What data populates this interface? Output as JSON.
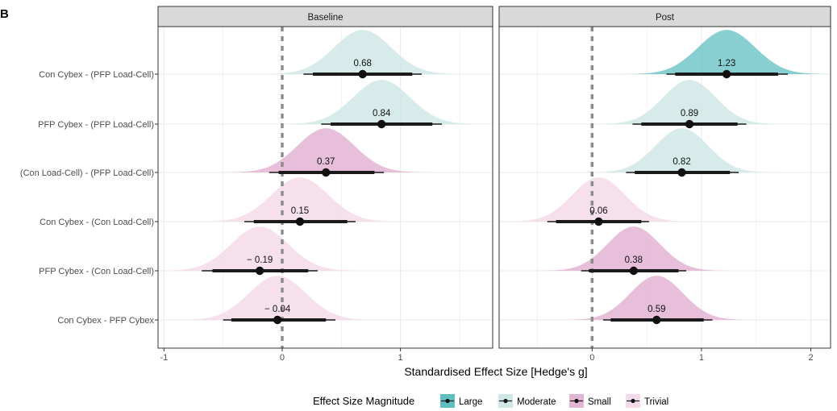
{
  "figure_label": "B",
  "x_axis_title": "Standardised Effect Size [Hedge's g]",
  "legend": {
    "title": "Effect Size Magnitude",
    "items": [
      {
        "label": "Large",
        "color": "#5fbfc0"
      },
      {
        "label": "Moderate",
        "color": "#cfe8e6"
      },
      {
        "label": "Small",
        "color": "#e3b4d4"
      },
      {
        "label": "Trivial",
        "color": "#f4dbe9"
      }
    ]
  },
  "magnitude_colors": {
    "Large": "#5fbfc0",
    "Moderate": "#cfe8e6",
    "Small": "#e3b4d4",
    "Trivial": "#f4dbe9"
  },
  "chart_data": {
    "type": "scatter",
    "subtype": "forest plot with density half-eyes",
    "y_categories": [
      "Con Cybex - (PFP Load-Cell)",
      "PFP Cybex - (PFP Load-Cell)",
      "(Con Load-Cell) - (PFP Load-Cell)",
      "Con Cybex - (Con Load-Cell)",
      "PFP Cybex - (Con Load-Cell)",
      "Con Cybex - PFP Cybex"
    ],
    "reference_line": 0,
    "grid": true,
    "legend_position": "bottom",
    "panels": [
      {
        "title": "Baseline",
        "xlim": [
          -1.05,
          1.78
        ],
        "xticks": [
          -1,
          0,
          1
        ],
        "xtick_labels": [
          "-1",
          "0",
          "1"
        ],
        "points": [
          {
            "category": "Con Cybex - (PFP Load-Cell)",
            "estimate": 0.68,
            "label": "0.68",
            "ci66": [
              0.26,
              1.1
            ],
            "ci95": [
              0.18,
              1.18
            ],
            "sd": 0.24,
            "magnitude": "Moderate"
          },
          {
            "category": "PFP Cybex - (PFP Load-Cell)",
            "estimate": 0.84,
            "label": "0.84",
            "ci66": [
              0.41,
              1.27
            ],
            "ci95": [
              0.33,
              1.35
            ],
            "sd": 0.24,
            "magnitude": "Moderate"
          },
          {
            "category": "(Con Load-Cell) - (PFP Load-Cell)",
            "estimate": 0.37,
            "label": "0.37",
            "ci66": [
              -0.03,
              0.78
            ],
            "ci95": [
              -0.11,
              0.86
            ],
            "sd": 0.24,
            "magnitude": "Small"
          },
          {
            "category": "Con Cybex - (Con Load-Cell)",
            "estimate": 0.15,
            "label": "0.15",
            "ci66": [
              -0.24,
              0.55
            ],
            "ci95": [
              -0.32,
              0.62
            ],
            "sd": 0.24,
            "magnitude": "Trivial"
          },
          {
            "category": "PFP Cybex - (Con Load-Cell)",
            "estimate": -0.19,
            "label": "− 0.19",
            "ci66": [
              -0.59,
              0.22
            ],
            "ci95": [
              -0.68,
              0.3
            ],
            "sd": 0.24,
            "magnitude": "Trivial"
          },
          {
            "category": "Con Cybex - PFP Cybex",
            "estimate": -0.04,
            "label": "− 0.04",
            "ci66": [
              -0.43,
              0.37
            ],
            "ci95": [
              -0.5,
              0.45
            ],
            "sd": 0.24,
            "magnitude": "Trivial"
          }
        ]
      },
      {
        "title": "Post",
        "xlim": [
          -0.85,
          2.18
        ],
        "xticks": [
          0,
          1,
          2
        ],
        "xtick_labels": [
          "0",
          "1",
          "2"
        ],
        "points": [
          {
            "category": "Con Cybex - (PFP Load-Cell)",
            "estimate": 1.23,
            "label": "1.23",
            "ci66": [
              0.76,
              1.7
            ],
            "ci95": [
              0.68,
              1.79
            ],
            "sd": 0.26,
            "magnitude": "Large"
          },
          {
            "category": "PFP Cybex - (PFP Load-Cell)",
            "estimate": 0.89,
            "label": "0.89",
            "ci66": [
              0.45,
              1.33
            ],
            "ci95": [
              0.37,
              1.41
            ],
            "sd": 0.24,
            "magnitude": "Moderate"
          },
          {
            "category": "(Con Load-Cell) - (PFP Load-Cell)",
            "estimate": 0.82,
            "label": "0.82",
            "ci66": [
              0.39,
              1.26
            ],
            "ci95": [
              0.31,
              1.34
            ],
            "sd": 0.24,
            "magnitude": "Moderate"
          },
          {
            "category": "Con Cybex - (Con Load-Cell)",
            "estimate": 0.06,
            "label": "0.06",
            "ci66": [
              -0.33,
              0.45
            ],
            "ci95": [
              -0.41,
              0.52
            ],
            "sd": 0.24,
            "magnitude": "Trivial"
          },
          {
            "category": "PFP Cybex - (Con Load-Cell)",
            "estimate": 0.38,
            "label": "0.38",
            "ci66": [
              -0.03,
              0.79
            ],
            "ci95": [
              -0.1,
              0.86
            ],
            "sd": 0.24,
            "magnitude": "Small"
          },
          {
            "category": "Con Cybex - PFP Cybex",
            "estimate": 0.59,
            "label": "0.59",
            "ci66": [
              0.17,
              1.02
            ],
            "ci95": [
              0.1,
              1.1
            ],
            "sd": 0.24,
            "magnitude": "Small"
          }
        ]
      }
    ]
  }
}
